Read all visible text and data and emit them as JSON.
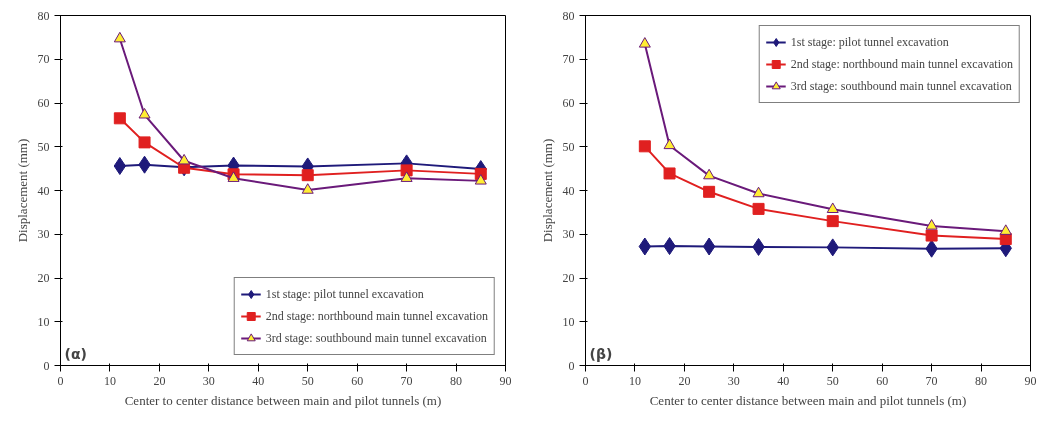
{
  "chart_data": [
    {
      "type": "line",
      "xlabel": "Center to center distance between main and pilot tunnels (m)",
      "ylabel": "Displacement (mm)",
      "annotations": [
        "(α)"
      ],
      "x": [
        12,
        17,
        25,
        35,
        50,
        70,
        85
      ],
      "xlim": [
        0,
        90
      ],
      "xticks": [
        0,
        10,
        20,
        30,
        40,
        50,
        60,
        70,
        80,
        90
      ],
      "ylim": [
        0,
        80
      ],
      "yticks": [
        0,
        10,
        20,
        30,
        40,
        50,
        60,
        70,
        80
      ],
      "grid": false,
      "legend": "bottom right",
      "series": [
        {
          "name": "1st stage: pilot tunnel excavation",
          "color": "#1f1a7a",
          "marker": "diamond",
          "values": [
            45.6,
            45.9,
            45.3,
            45.7,
            45.5,
            46.2,
            44.9
          ]
        },
        {
          "name": "2nd stage: northbound main tunnel excavation",
          "color": "#e02020",
          "marker": "square",
          "values": [
            56.5,
            51.0,
            45.2,
            43.7,
            43.5,
            44.6,
            43.8
          ]
        },
        {
          "name": "3rd stage: southbound main tunnel excavation",
          "color": "#6a1a7a",
          "marker": "triangle",
          "values": [
            74.7,
            57.3,
            46.8,
            42.8,
            40.1,
            42.8,
            42.2
          ]
        }
      ]
    },
    {
      "type": "line",
      "xlabel": "Center to center distance between main and pilot tunnels (m)",
      "ylabel": "Displacement (mm)",
      "annotations": [
        "(β)"
      ],
      "x": [
        12,
        17,
        25,
        35,
        50,
        70,
        85
      ],
      "xlim": [
        0,
        90
      ],
      "xticks": [
        0,
        10,
        20,
        30,
        40,
        50,
        60,
        70,
        80,
        90
      ],
      "ylim": [
        0,
        80
      ],
      "yticks": [
        0,
        10,
        20,
        30,
        40,
        50,
        60,
        70,
        80
      ],
      "grid": false,
      "legend": "top right",
      "series": [
        {
          "name": "1st stage: pilot tunnel excavation",
          "color": "#1f1a7a",
          "marker": "diamond",
          "values": [
            27.2,
            27.3,
            27.2,
            27.1,
            27.0,
            26.7,
            26.8
          ]
        },
        {
          "name": "2nd stage: northbound main tunnel excavation",
          "color": "#e02020",
          "marker": "square",
          "values": [
            50.1,
            43.9,
            39.7,
            35.8,
            33.0,
            29.7,
            28.9
          ]
        },
        {
          "name": "3rd stage: southbound main tunnel excavation",
          "color": "#6a1a7a",
          "marker": "triangle",
          "values": [
            73.5,
            50.3,
            43.4,
            39.3,
            35.7,
            31.9,
            30.7
          ]
        }
      ]
    }
  ]
}
